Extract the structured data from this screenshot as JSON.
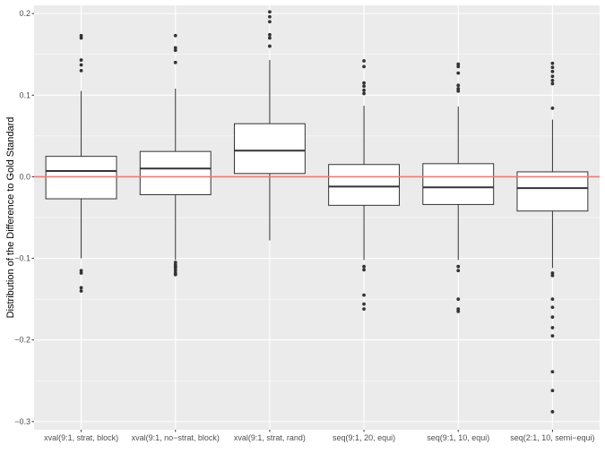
{
  "chart_data": {
    "type": "boxplot",
    "title": "",
    "xlabel": "",
    "ylabel": "Distribution of the Difference to Gold Standard",
    "ylim": [
      -0.31,
      0.21
    ],
    "yticks": [
      -0.3,
      -0.2,
      -0.1,
      0.0,
      0.1,
      0.2
    ],
    "ytick_labels": [
      "−0.3",
      "−0.2",
      "−0.1",
      "0.0",
      "0.1",
      "0.2"
    ],
    "reference_line": 0.0,
    "grid": true,
    "categories": [
      "xval(9:1, strat, block)",
      "xval(9:1, no−strat, block)",
      "xval(9:1, strat, rand)",
      "seq(9:1, 20, equi)",
      "seq(9:1, 10, equi)",
      "seq(2:1, 10, semi−equi)"
    ],
    "boxes": [
      {
        "whisker_low": -0.1,
        "q1": -0.027,
        "median": 0.007,
        "q3": 0.025,
        "whisker_high": 0.105,
        "outliers": [
          0.173,
          0.17,
          0.143,
          0.137,
          0.13,
          -0.115,
          -0.118,
          -0.136,
          -0.14
        ]
      },
      {
        "whisker_low": -0.102,
        "q1": -0.022,
        "median": 0.01,
        "q3": 0.031,
        "whisker_high": 0.108,
        "outliers": [
          0.173,
          0.158,
          0.155,
          0.14,
          -0.105,
          -0.108,
          -0.11,
          -0.112,
          -0.115,
          -0.118,
          -0.12
        ]
      },
      {
        "whisker_low": -0.078,
        "q1": 0.004,
        "median": 0.032,
        "q3": 0.065,
        "whisker_high": 0.143,
        "outliers": [
          0.202,
          0.196,
          0.19,
          0.174,
          0.17,
          0.16
        ]
      },
      {
        "whisker_low": -0.102,
        "q1": -0.035,
        "median": -0.012,
        "q3": 0.015,
        "whisker_high": 0.087,
        "outliers": [
          0.142,
          0.135,
          0.115,
          0.111,
          0.106,
          0.102,
          -0.11,
          -0.114,
          -0.145,
          -0.156,
          -0.162
        ]
      },
      {
        "whisker_low": -0.102,
        "q1": -0.034,
        "median": -0.013,
        "q3": 0.016,
        "whisker_high": 0.086,
        "outliers": [
          0.138,
          0.135,
          0.127,
          0.112,
          0.108,
          0.105,
          -0.11,
          -0.115,
          -0.15,
          -0.162,
          -0.165
        ]
      },
      {
        "whisker_low": -0.112,
        "q1": -0.042,
        "median": -0.014,
        "q3": 0.006,
        "whisker_high": 0.07,
        "outliers": [
          0.139,
          0.134,
          0.129,
          0.123,
          0.118,
          0.114,
          0.084,
          -0.118,
          -0.121,
          -0.15,
          -0.16,
          -0.172,
          -0.185,
          -0.195,
          -0.239,
          -0.262,
          -0.288
        ]
      }
    ],
    "colors": {
      "panel_background": "#ebebeb",
      "grid_major": "#ffffff",
      "box_fill": "#ffffff",
      "box_stroke": "#333333",
      "outlier": "#333333",
      "reference_line": "#f8766d"
    }
  }
}
